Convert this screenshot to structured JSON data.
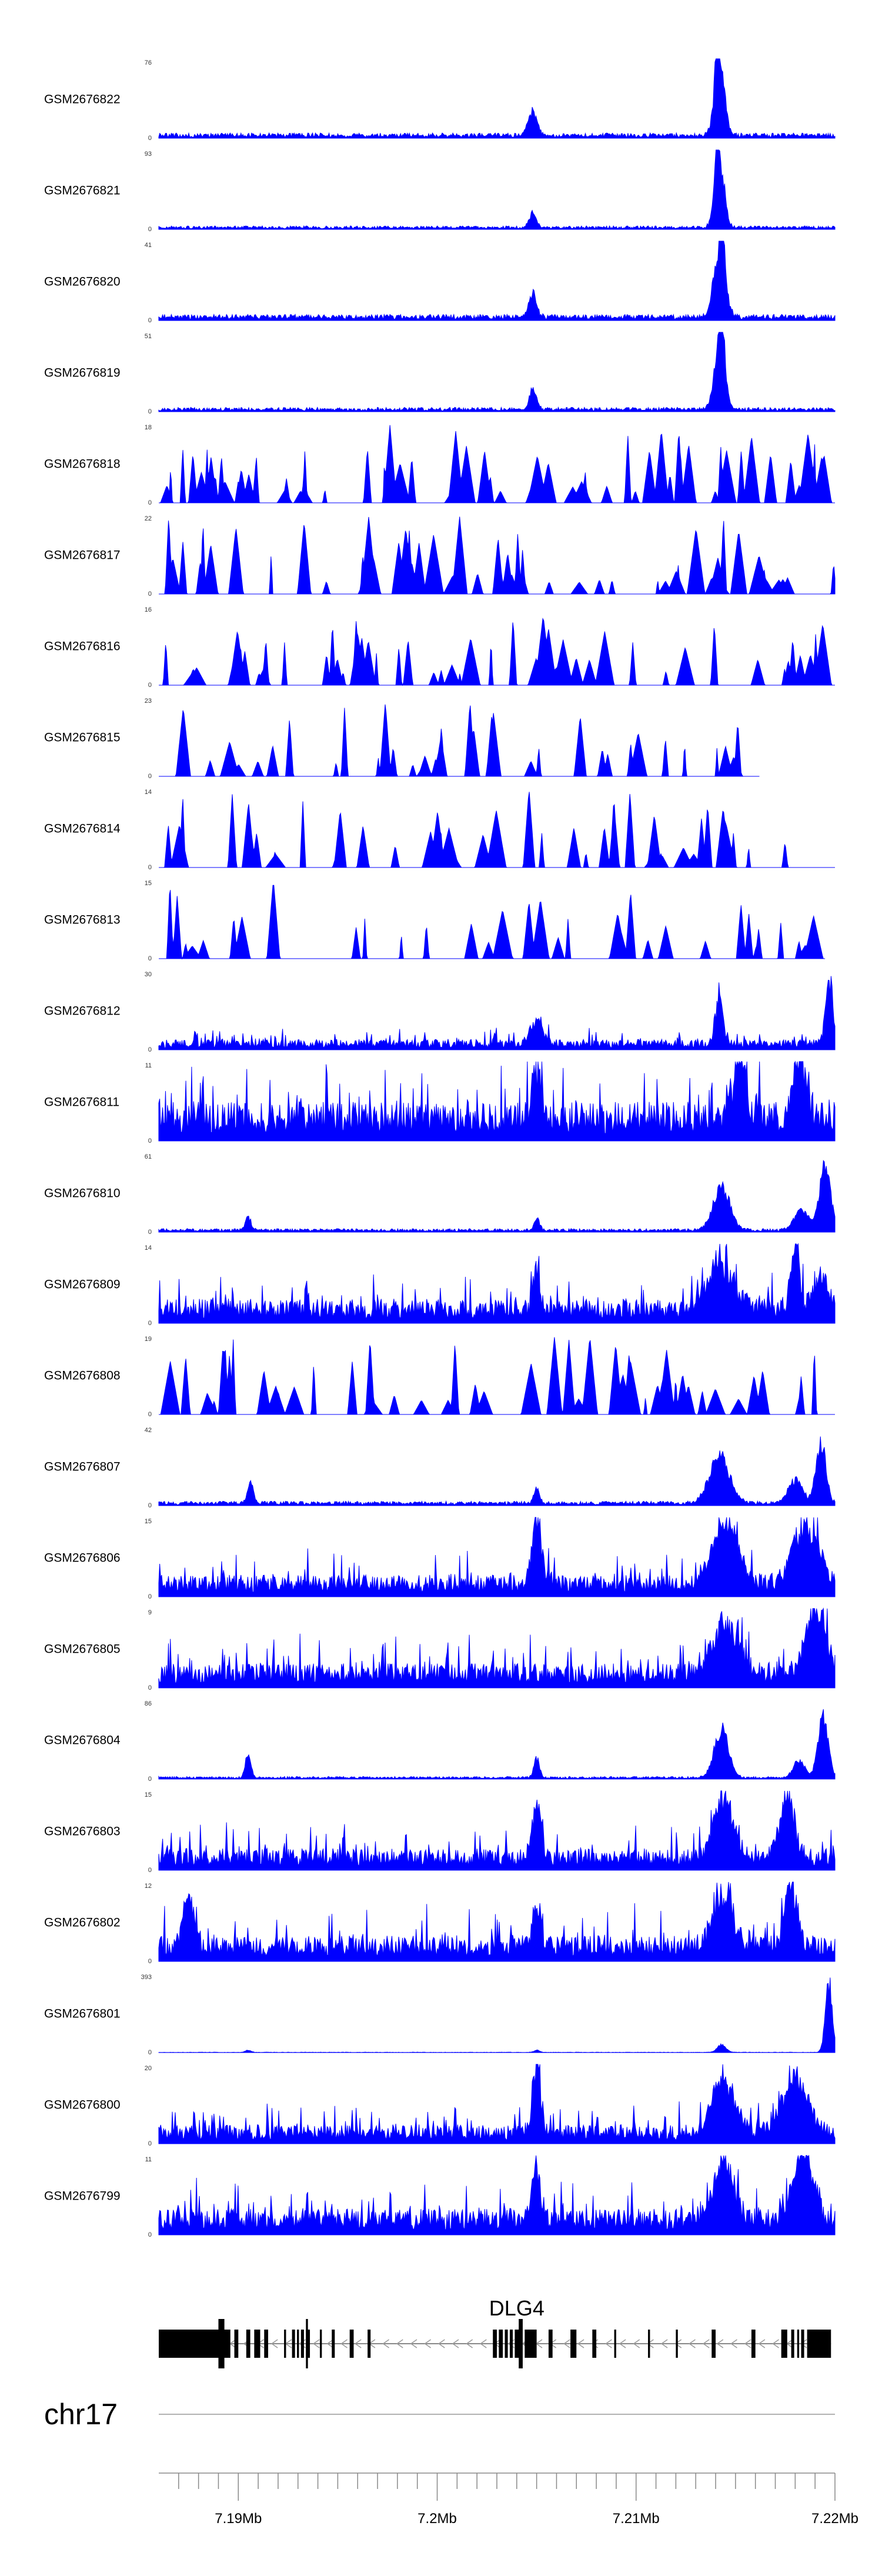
{
  "chart_data": {
    "type": "area",
    "track_color": "#0000ff",
    "chromosome": "chr17",
    "region": "chr17:7186000-7220000",
    "x_range_bp": [
      7186000,
      7220000
    ],
    "x_ticks": [
      7190000,
      7200000,
      7210000,
      7220000
    ],
    "x_tick_labels": [
      "7.19Mb",
      "7.2Mb",
      "7.21Mb",
      "7.22Mb"
    ],
    "gene": {
      "name": "DLG4",
      "strand": "-",
      "start": 7186000,
      "end": 7219800,
      "exons": [
        [
          7186000,
          7189600
        ],
        [
          7189800,
          7190000
        ],
        [
          7190400,
          7190600
        ],
        [
          7190800,
          7191100
        ],
        [
          7191300,
          7191500
        ],
        [
          7192300,
          7192400
        ],
        [
          7192700,
          7192850
        ],
        [
          7192950,
          7193050
        ],
        [
          7193150,
          7193300
        ],
        [
          7193400,
          7193600
        ],
        [
          7194100,
          7194200
        ],
        [
          7194700,
          7194850
        ],
        [
          7195600,
          7195800
        ],
        [
          7196500,
          7196650
        ],
        [
          7202800,
          7203000
        ],
        [
          7203100,
          7203300
        ],
        [
          7203400,
          7203550
        ],
        [
          7203650,
          7203800
        ],
        [
          7203900,
          7204200
        ],
        [
          7204400,
          7205000
        ],
        [
          7205600,
          7205800
        ],
        [
          7206700,
          7207000
        ],
        [
          7207800,
          7208000
        ],
        [
          7208900,
          7209000
        ],
        [
          7210600,
          7210700
        ],
        [
          7212000,
          7212100
        ],
        [
          7213800,
          7214000
        ],
        [
          7215800,
          7216000
        ],
        [
          7217300,
          7217600
        ],
        [
          7217800,
          7217950
        ],
        [
          7218100,
          7218200
        ],
        [
          7218300,
          7218450
        ],
        [
          7218600,
          7219800
        ]
      ],
      "thin_exons": [
        [
          7189000,
          7189300
        ],
        [
          7193400,
          7193500
        ],
        [
          7204100,
          7204300
        ]
      ]
    },
    "tracks": [
      {
        "name": "GSM2676822",
        "ymax": 76,
        "ymin": 0,
        "pattern": "chip",
        "seed": 822,
        "bg": 0.06,
        "peaks": [
          [
            7204800,
            0.36,
            300
          ],
          [
            7214200,
            1.0,
            350
          ],
          [
            7214050,
            0.7,
            120
          ]
        ],
        "span": [
          7186000,
          7220000
        ]
      },
      {
        "name": "GSM2676821",
        "ymax": 93,
        "ymin": 0,
        "pattern": "chip",
        "seed": 821,
        "bg": 0.04,
        "peaks": [
          [
            7204800,
            0.22,
            250
          ],
          [
            7214200,
            1.0,
            330
          ],
          [
            7214050,
            0.75,
            120
          ]
        ],
        "span": [
          7186000,
          7220000
        ]
      },
      {
        "name": "GSM2676820",
        "ymax": 41,
        "ymin": 0,
        "pattern": "chip",
        "seed": 820,
        "bg": 0.07,
        "peaks": [
          [
            7204800,
            0.34,
            280
          ],
          [
            7214200,
            1.0,
            400
          ],
          [
            7214350,
            0.6,
            150
          ]
        ],
        "span": [
          7186000,
          7220000
        ]
      },
      {
        "name": "GSM2676819",
        "ymax": 51,
        "ymin": 0,
        "pattern": "chip",
        "seed": 819,
        "bg": 0.05,
        "peaks": [
          [
            7204800,
            0.3,
            250
          ],
          [
            7214200,
            1.0,
            360
          ],
          [
            7214350,
            0.55,
            140
          ]
        ],
        "span": [
          7186000,
          7220000
        ]
      },
      {
        "name": "GSM2676818",
        "ymax": 18,
        "ymin": 0,
        "pattern": "spikes",
        "seed": 818,
        "count": 70,
        "span": [
          7186000,
          7220000
        ]
      },
      {
        "name": "GSM2676817",
        "ymax": 22,
        "ymin": 0,
        "pattern": "spikes",
        "seed": 817,
        "count": 55,
        "span": [
          7186000,
          7220000
        ],
        "lead": 1.0
      },
      {
        "name": "GSM2676816",
        "ymax": 16,
        "ymin": 0,
        "pattern": "spikes",
        "seed": 816,
        "count": 60,
        "span": [
          7186000,
          7220000
        ]
      },
      {
        "name": "GSM2676815",
        "ymax": 23,
        "ymin": 0,
        "pattern": "spikes",
        "seed": 815,
        "count": 40,
        "span": [
          7186000,
          7216200
        ]
      },
      {
        "name": "GSM2676814",
        "ymax": 14,
        "ymin": 0,
        "pattern": "spikes",
        "seed": 814,
        "count": 45,
        "span": [
          7186000,
          7220000
        ]
      },
      {
        "name": "GSM2676813",
        "ymax": 15,
        "ymin": 0,
        "pattern": "spikes",
        "seed": 813,
        "count": 42,
        "span": [
          7186000,
          7219500
        ]
      },
      {
        "name": "GSM2676812",
        "ymax": 30,
        "ymin": 0,
        "pattern": "dense",
        "seed": 812,
        "bg": 0.12,
        "peaks": [
          [
            7205000,
            0.35,
            400
          ],
          [
            7214200,
            0.72,
            250
          ],
          [
            7219700,
            1.0,
            250
          ]
        ],
        "span": [
          7186000,
          7220000
        ]
      },
      {
        "name": "GSM2676811",
        "ymax": 11,
        "ymin": 0,
        "pattern": "dense",
        "seed": 811,
        "bg": 0.45,
        "peaks": [
          [
            7205000,
            0.7,
            300
          ],
          [
            7215200,
            0.95,
            400
          ],
          [
            7218200,
            0.9,
            500
          ]
        ],
        "span": [
          7186000,
          7220000
        ]
      },
      {
        "name": "GSM2676810",
        "ymax": 61,
        "ymin": 0,
        "pattern": "chip",
        "seed": 810,
        "bg": 0.04,
        "peaks": [
          [
            7190500,
            0.2,
            200
          ],
          [
            7205000,
            0.17,
            200
          ],
          [
            7214300,
            0.62,
            600
          ],
          [
            7219500,
            0.92,
            400
          ],
          [
            7218300,
            0.3,
            500
          ]
        ],
        "span": [
          7186000,
          7220000
        ]
      },
      {
        "name": "GSM2676809",
        "ymax": 14,
        "ymin": 0,
        "pattern": "dense",
        "seed": 809,
        "bg": 0.28,
        "peaks": [
          [
            7205000,
            0.65,
            250
          ],
          [
            7214200,
            0.7,
            900
          ],
          [
            7218000,
            1.0,
            300
          ],
          [
            7219300,
            0.55,
            500
          ]
        ],
        "span": [
          7186000,
          7220000
        ]
      },
      {
        "name": "GSM2676808",
        "ymax": 19,
        "ymin": 0,
        "pattern": "spikes",
        "seed": 808,
        "count": 50,
        "span": [
          7186000,
          7220000
        ]
      },
      {
        "name": "GSM2676807",
        "ymax": 42,
        "ymin": 0,
        "pattern": "chip",
        "seed": 807,
        "bg": 0.05,
        "peaks": [
          [
            7190600,
            0.3,
            200
          ],
          [
            7205000,
            0.2,
            200
          ],
          [
            7214200,
            0.7,
            700
          ],
          [
            7219300,
            0.9,
            350
          ],
          [
            7218000,
            0.35,
            500
          ]
        ],
        "span": [
          7186000,
          7220000
        ]
      },
      {
        "name": "GSM2676806",
        "ymax": 15,
        "ymin": 0,
        "pattern": "dense",
        "seed": 806,
        "bg": 0.25,
        "peaks": [
          [
            7205000,
            0.95,
            350
          ],
          [
            7214500,
            0.85,
            900
          ],
          [
            7218500,
            0.85,
            900
          ]
        ],
        "span": [
          7186000,
          7220000
        ]
      },
      {
        "name": "GSM2676805",
        "ymax": 9,
        "ymin": 0,
        "pattern": "dense",
        "seed": 805,
        "bg": 0.28,
        "peaks": [
          [
            7214500,
            0.75,
            900
          ],
          [
            7219000,
            0.95,
            700
          ]
        ],
        "span": [
          7186000,
          7220000
        ]
      },
      {
        "name": "GSM2676804",
        "ymax": 86,
        "ymin": 0,
        "pattern": "chip",
        "seed": 804,
        "bg": 0.03,
        "peaks": [
          [
            7190500,
            0.35,
            200
          ],
          [
            7205000,
            0.28,
            200
          ],
          [
            7214300,
            0.72,
            500
          ],
          [
            7219400,
            0.93,
            350
          ],
          [
            7218200,
            0.25,
            400
          ]
        ],
        "span": [
          7186000,
          7220000
        ]
      },
      {
        "name": "GSM2676803",
        "ymax": 15,
        "ymin": 0,
        "pattern": "dense",
        "seed": 803,
        "bg": 0.25,
        "peaks": [
          [
            7205000,
            0.8,
            300
          ],
          [
            7214400,
            0.9,
            700
          ],
          [
            7217600,
            0.9,
            500
          ]
        ],
        "span": [
          7186000,
          7220000
        ]
      },
      {
        "name": "GSM2676802",
        "ymax": 12,
        "ymin": 0,
        "pattern": "dense",
        "seed": 802,
        "bg": 0.3,
        "peaks": [
          [
            7187500,
            0.7,
            400
          ],
          [
            7205000,
            0.6,
            300
          ],
          [
            7214400,
            0.75,
            700
          ],
          [
            7217800,
            0.95,
            400
          ]
        ],
        "span": [
          7186000,
          7220000
        ]
      },
      {
        "name": "GSM2676801",
        "ymax": 393,
        "ymin": 0,
        "pattern": "chip",
        "seed": 801,
        "bg": 0.005,
        "peaks": [
          [
            7190500,
            0.03,
            200
          ],
          [
            7205000,
            0.03,
            200
          ],
          [
            7214300,
            0.11,
            300
          ],
          [
            7219700,
            1.0,
            250
          ]
        ],
        "span": [
          7186000,
          7220000
        ]
      },
      {
        "name": "GSM2676800",
        "ymax": 20,
        "ymin": 0,
        "pattern": "dense",
        "seed": 800,
        "bg": 0.22,
        "peaks": [
          [
            7205000,
            1.0,
            300
          ],
          [
            7214400,
            0.8,
            800
          ],
          [
            7218000,
            0.75,
            900
          ]
        ],
        "span": [
          7186000,
          7220000
        ]
      },
      {
        "name": "GSM2676799",
        "ymax": 11,
        "ymin": 0,
        "pattern": "dense",
        "seed": 799,
        "bg": 0.3,
        "peaks": [
          [
            7205000,
            0.75,
            300
          ],
          [
            7214400,
            0.85,
            700
          ],
          [
            7218400,
            1.0,
            700
          ]
        ],
        "span": [
          7186000,
          7220000
        ]
      }
    ]
  }
}
